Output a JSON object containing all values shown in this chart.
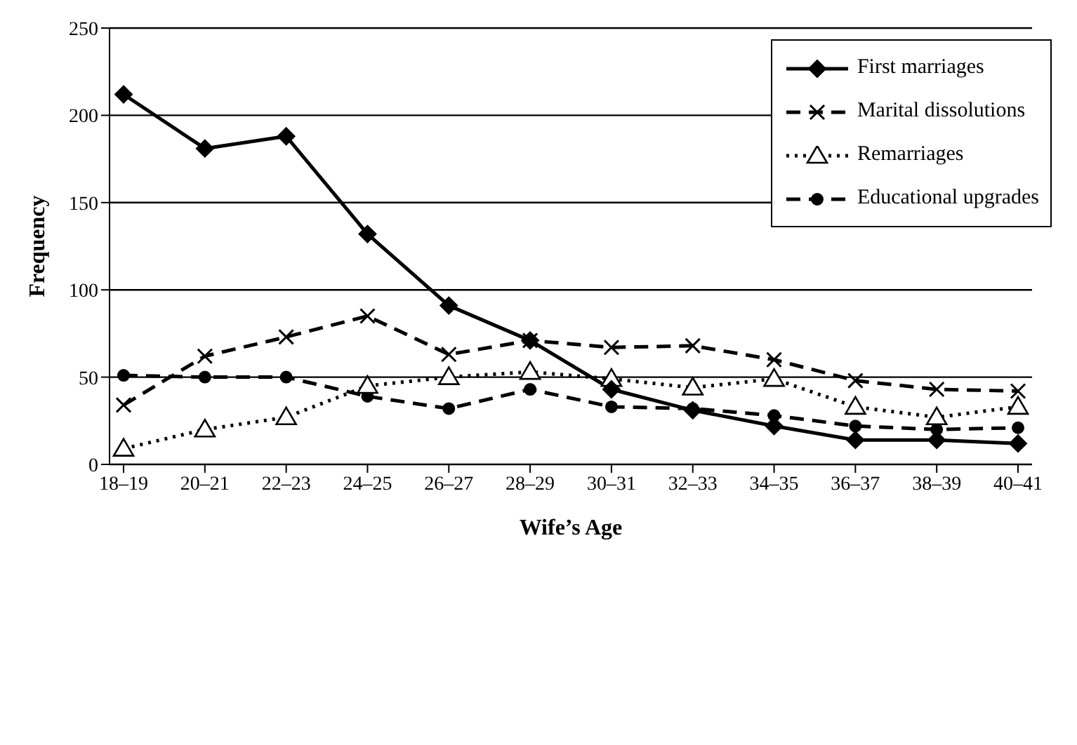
{
  "chart_data": {
    "type": "line",
    "xlabel": "Wife’s Age",
    "ylabel": "Frequency",
    "categories": [
      "18–19",
      "20–21",
      "22–23",
      "24–25",
      "26–27",
      "28–29",
      "30–31",
      "32–33",
      "34–35",
      "36–37",
      "38–39",
      "40–41"
    ],
    "series": [
      {
        "name": "First marriages",
        "color": "#000000",
        "marker": "diamond",
        "line_style": "solid",
        "values": [
          212,
          181,
          188,
          132,
          91,
          71,
          43,
          31,
          22,
          14,
          14,
          12
        ]
      },
      {
        "name": "Marital dissolutions",
        "color": "#000000",
        "marker": "cross",
        "line_style": "dashed",
        "values": [
          34,
          62,
          73,
          85,
          63,
          71,
          67,
          68,
          60,
          48,
          43,
          42
        ]
      },
      {
        "name": "Remarriages",
        "color": "#000000",
        "marker": "triangle",
        "line_style": "dotted",
        "values": [
          9,
          20,
          27,
          45,
          50,
          53,
          49,
          44,
          49,
          33,
          27,
          33
        ]
      },
      {
        "name": "Educational upgrades",
        "color": "#000000",
        "marker": "circle",
        "line_style": "dashed",
        "values": [
          51,
          50,
          50,
          39,
          32,
          43,
          33,
          32,
          28,
          22,
          20,
          21
        ]
      }
    ],
    "ylim": [
      0,
      250
    ],
    "yticks": [
      0,
      50,
      100,
      150,
      200,
      250
    ],
    "grid": "y",
    "legend": "top right"
  }
}
